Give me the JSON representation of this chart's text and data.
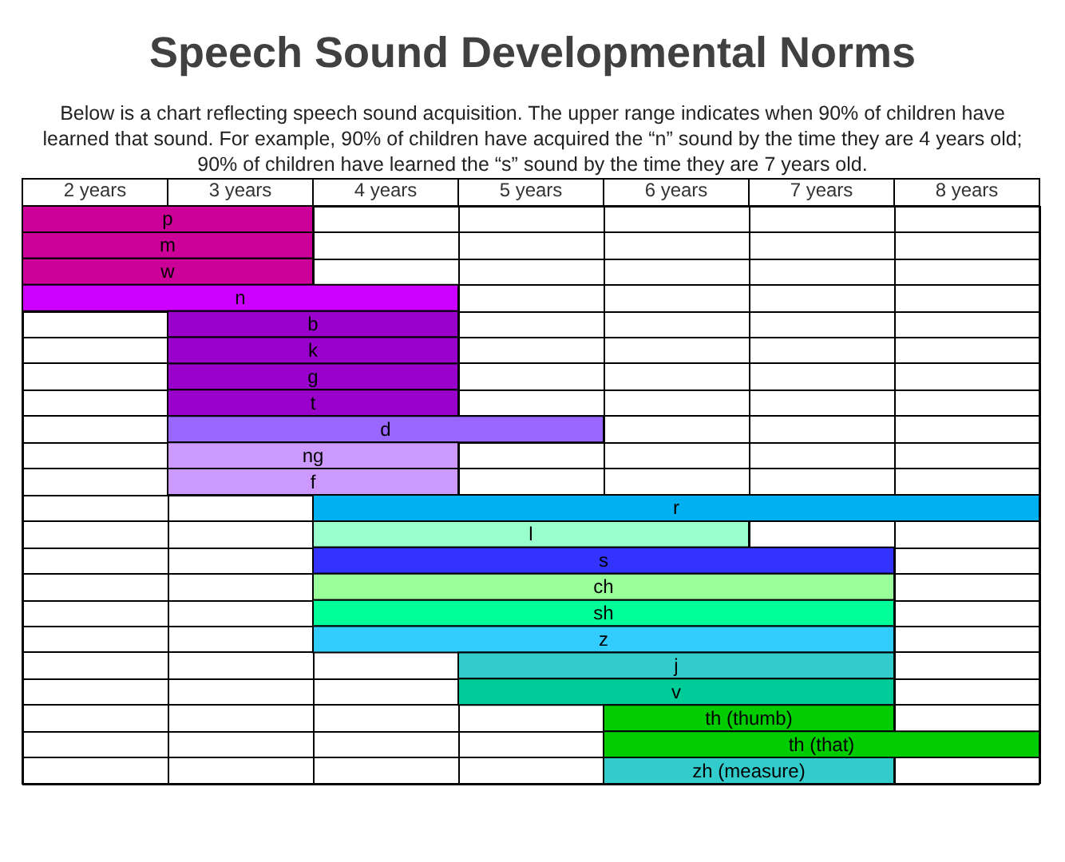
{
  "chart_data": {
    "type": "bar",
    "orientation": "horizontal",
    "title": "Speech Sound Developmental Norms",
    "subtitle": "Below is a chart reflecting speech sound acquisition. The upper range indicates when 90% of children have learned that sound. For example, 90% of children have acquired the “n” sound by the time they are 4 years old; 90% of children have learned the “s” sound by the time they are 7 years old.",
    "categories": [
      "p",
      "m",
      "w",
      "n",
      "b",
      "k",
      "g",
      "t",
      "d",
      "ng",
      "f",
      "r",
      "l",
      "s",
      "ch",
      "sh",
      "z",
      "j",
      "v",
      "th (thumb)",
      "th (that)",
      "zh (measure)"
    ],
    "base": [
      2,
      2,
      2,
      2,
      3,
      3,
      3,
      3,
      3,
      3,
      3,
      4,
      4,
      4,
      4,
      4,
      4,
      5,
      5,
      6,
      6,
      6
    ],
    "values": [
      2,
      2,
      2,
      3,
      2,
      2,
      2,
      2,
      3,
      2,
      2,
      5,
      3,
      4,
      4,
      4,
      4,
      3,
      3,
      2,
      3,
      2
    ],
    "colors": [
      "#cc0099",
      "#cc0099",
      "#cc0099",
      "#cc00ff",
      "#9900cc",
      "#9900cc",
      "#9900cc",
      "#9900cc",
      "#9966ff",
      "#cc99ff",
      "#cc99ff",
      "#00b0f0",
      "#99ffcc",
      "#3333ff",
      "#99ff99",
      "#00ff99",
      "#33ccff",
      "#33cccc",
      "#00cc99",
      "#00cc00",
      "#00cc00",
      "#33cccc"
    ],
    "xlim": [
      2,
      9
    ],
    "xticks": [
      {
        "value": 2.5,
        "label": "2 years"
      },
      {
        "value": 3.5,
        "label": "3 years"
      },
      {
        "value": 4.5,
        "label": "4 years"
      },
      {
        "value": 5.5,
        "label": "5 years"
      },
      {
        "value": 6.5,
        "label": "6 years"
      },
      {
        "value": 7.5,
        "label": "7 years"
      },
      {
        "value": 8.5,
        "label": "8 years"
      }
    ],
    "grid": true
  }
}
